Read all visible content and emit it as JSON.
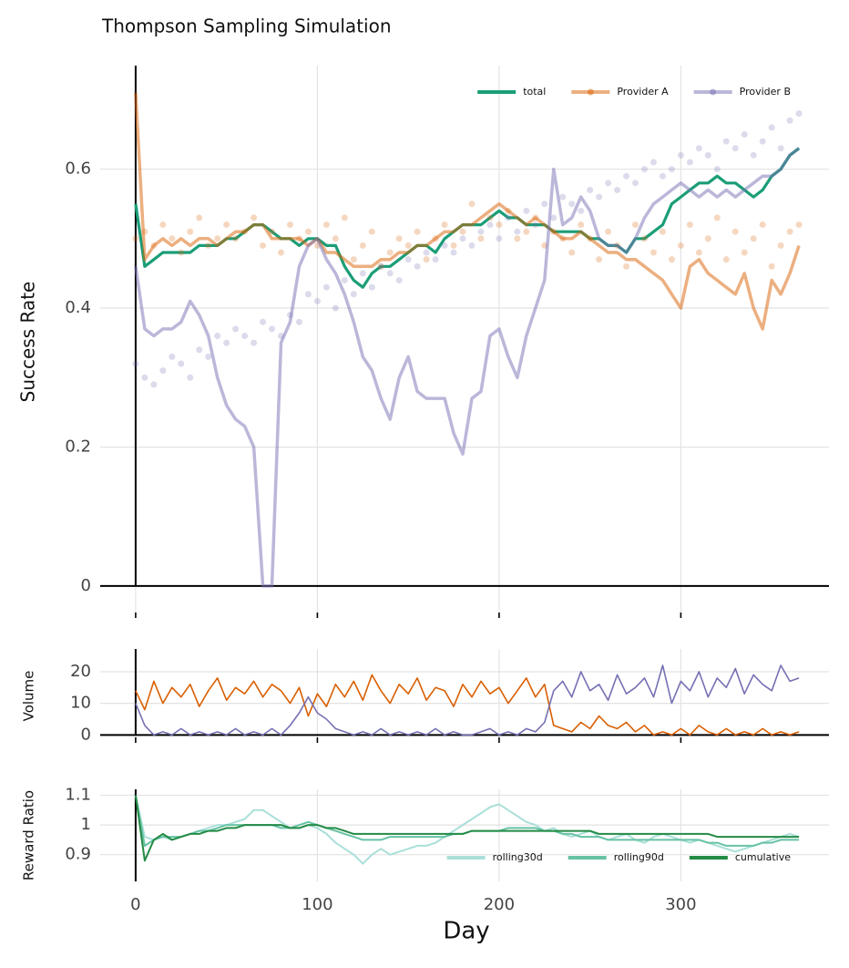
{
  "chart_data": [
    {
      "type": "line",
      "title": "Thompson Sampling Simulation",
      "ylabel": "Success Rate",
      "x": [
        0,
        5,
        10,
        15,
        20,
        25,
        30,
        35,
        40,
        45,
        50,
        55,
        60,
        65,
        70,
        75,
        80,
        85,
        90,
        95,
        100,
        105,
        110,
        115,
        120,
        125,
        130,
        135,
        140,
        145,
        150,
        155,
        160,
        165,
        170,
        175,
        180,
        185,
        190,
        195,
        200,
        205,
        210,
        215,
        220,
        225,
        230,
        235,
        240,
        245,
        250,
        255,
        260,
        265,
        270,
        275,
        280,
        285,
        290,
        295,
        300,
        305,
        310,
        315,
        320,
        325,
        330,
        335,
        340,
        345,
        350,
        355,
        360,
        365
      ],
      "xlim": [
        -19.5,
        381.5
      ],
      "xticks": [
        0,
        100,
        200,
        300
      ],
      "ylim": [
        -0.046,
        0.749
      ],
      "yticks": [
        0,
        0.2,
        0.4,
        0.6
      ],
      "grid": true,
      "legend": "upper right",
      "series": [
        {
          "name": "total",
          "color": "#1b9e77",
          "values": [
            0.55,
            0.46,
            0.47,
            0.48,
            0.48,
            0.48,
            0.48,
            0.49,
            0.49,
            0.49,
            0.5,
            0.5,
            0.51,
            0.52,
            0.52,
            0.51,
            0.5,
            0.5,
            0.49,
            0.5,
            0.5,
            0.49,
            0.49,
            0.46,
            0.44,
            0.43,
            0.45,
            0.46,
            0.46,
            0.47,
            0.48,
            0.49,
            0.49,
            0.48,
            0.5,
            0.51,
            0.52,
            0.52,
            0.52,
            0.53,
            0.54,
            0.53,
            0.53,
            0.52,
            0.52,
            0.52,
            0.51,
            0.51,
            0.51,
            0.51,
            0.5,
            0.5,
            0.49,
            0.49,
            0.48,
            0.5,
            0.5,
            0.51,
            0.52,
            0.55,
            0.56,
            0.57,
            0.58,
            0.58,
            0.59,
            0.58,
            0.58,
            0.57,
            0.56,
            0.57,
            0.59,
            0.6,
            0.62,
            0.63
          ]
        },
        {
          "name": "Provider A",
          "color": "#d95f02",
          "values": [
            0.71,
            0.47,
            0.49,
            0.5,
            0.49,
            0.5,
            0.49,
            0.5,
            0.5,
            0.49,
            0.5,
            0.51,
            0.51,
            0.52,
            0.52,
            0.5,
            0.5,
            0.5,
            0.5,
            0.49,
            0.5,
            0.48,
            0.48,
            0.47,
            0.46,
            0.46,
            0.46,
            0.47,
            0.47,
            0.48,
            0.48,
            0.49,
            0.49,
            0.5,
            0.51,
            0.51,
            0.52,
            0.52,
            0.53,
            0.54,
            0.55,
            0.54,
            0.53,
            0.52,
            0.53,
            0.52,
            0.51,
            0.5,
            0.5,
            0.51,
            0.5,
            0.49,
            0.48,
            0.48,
            0.47,
            0.47,
            0.46,
            0.45,
            0.44,
            0.42,
            0.4,
            0.46,
            0.47,
            0.45,
            0.44,
            0.43,
            0.42,
            0.45,
            0.4,
            0.37,
            0.44,
            0.42,
            0.45,
            0.49
          ],
          "scatter": [
            0.5,
            0.51,
            0.49,
            0.52,
            0.5,
            0.48,
            0.51,
            0.53,
            0.49,
            0.5,
            0.52,
            0.5,
            0.51,
            0.53,
            0.49,
            0.51,
            0.48,
            0.52,
            0.5,
            0.51,
            0.49,
            0.52,
            0.5,
            0.53,
            0.47,
            0.49,
            0.51,
            0.46,
            0.48,
            0.5,
            0.49,
            0.51,
            0.47,
            0.5,
            0.52,
            0.49,
            0.51,
            0.55,
            0.5,
            0.53,
            0.52,
            0.54,
            0.5,
            0.51,
            0.53,
            0.49,
            0.51,
            0.5,
            0.48,
            0.52,
            0.5,
            0.47,
            0.51,
            0.49,
            0.46,
            0.52,
            0.5,
            0.48,
            0.51,
            0.47,
            0.49,
            0.52,
            0.48,
            0.5,
            0.53,
            0.47,
            0.51,
            0.48,
            0.5,
            0.52,
            0.46,
            0.49,
            0.51,
            0.52
          ]
        },
        {
          "name": "Provider B",
          "color": "#7570b3",
          "values": [
            0.46,
            0.37,
            0.36,
            0.37,
            0.37,
            0.38,
            0.41,
            0.39,
            0.36,
            0.3,
            0.26,
            0.24,
            0.23,
            0.2,
            0.0,
            0.0,
            0.35,
            0.38,
            0.46,
            0.49,
            0.5,
            0.47,
            0.45,
            0.42,
            0.38,
            0.33,
            0.31,
            0.27,
            0.24,
            0.3,
            0.33,
            0.28,
            0.27,
            0.27,
            0.27,
            0.22,
            0.19,
            0.27,
            0.28,
            0.36,
            0.37,
            0.33,
            0.3,
            0.36,
            0.4,
            0.44,
            0.6,
            0.52,
            0.53,
            0.56,
            0.54,
            0.5,
            0.49,
            0.49,
            0.48,
            0.5,
            0.53,
            0.55,
            0.56,
            0.57,
            0.58,
            0.57,
            0.56,
            0.57,
            0.56,
            0.57,
            0.56,
            0.57,
            0.58,
            0.59,
            0.59,
            0.6,
            0.62,
            0.63
          ],
          "scatter": [
            0.32,
            0.3,
            0.29,
            0.31,
            0.33,
            0.32,
            0.3,
            0.34,
            0.33,
            0.36,
            0.35,
            0.37,
            0.36,
            0.35,
            0.38,
            0.37,
            0.36,
            0.39,
            0.38,
            0.42,
            0.41,
            0.43,
            0.4,
            0.44,
            0.42,
            0.45,
            0.43,
            0.46,
            0.45,
            0.44,
            0.47,
            0.46,
            0.48,
            0.47,
            0.49,
            0.48,
            0.5,
            0.49,
            0.51,
            0.52,
            0.5,
            0.53,
            0.51,
            0.54,
            0.52,
            0.55,
            0.53,
            0.56,
            0.55,
            0.54,
            0.57,
            0.56,
            0.58,
            0.57,
            0.59,
            0.58,
            0.6,
            0.61,
            0.59,
            0.6,
            0.62,
            0.61,
            0.63,
            0.62,
            0.6,
            0.64,
            0.63,
            0.65,
            0.62,
            0.64,
            0.66,
            0.63,
            0.67,
            0.68
          ]
        }
      ]
    },
    {
      "type": "line",
      "ylabel": "Volume",
      "x": [
        0,
        5,
        10,
        15,
        20,
        25,
        30,
        35,
        40,
        45,
        50,
        55,
        60,
        65,
        70,
        75,
        80,
        85,
        90,
        95,
        100,
        105,
        110,
        115,
        120,
        125,
        130,
        135,
        140,
        145,
        150,
        155,
        160,
        165,
        170,
        175,
        180,
        185,
        190,
        195,
        200,
        205,
        210,
        215,
        220,
        225,
        230,
        235,
        240,
        245,
        250,
        255,
        260,
        265,
        270,
        275,
        280,
        285,
        290,
        295,
        300,
        305,
        310,
        315,
        320,
        325,
        330,
        335,
        340,
        345,
        350,
        355,
        360,
        365
      ],
      "xlim": [
        -19.5,
        381.5
      ],
      "xticks": [
        0,
        100,
        200,
        300
      ],
      "ylim": [
        -2.5,
        27.2
      ],
      "yticks": [
        0,
        10,
        20
      ],
      "grid": true,
      "series": [
        {
          "color": "#d95f02",
          "values": [
            14,
            8,
            17,
            10,
            15,
            12,
            16,
            9,
            14,
            18,
            11,
            15,
            13,
            17,
            12,
            16,
            14,
            10,
            15,
            6,
            13,
            9,
            16,
            12,
            17,
            11,
            19,
            14,
            10,
            16,
            13,
            18,
            11,
            15,
            14,
            9,
            16,
            12,
            17,
            13,
            15,
            10,
            14,
            18,
            12,
            16,
            3,
            2,
            1,
            4,
            2,
            6,
            3,
            2,
            4,
            1,
            3,
            0,
            1,
            0,
            2,
            0,
            3,
            1,
            0,
            2,
            0,
            1,
            0,
            2,
            0,
            1,
            0,
            1
          ]
        },
        {
          "color": "#7570b3",
          "values": [
            10,
            3,
            0,
            1,
            0,
            2,
            0,
            1,
            0,
            1,
            0,
            2,
            0,
            1,
            0,
            2,
            0,
            3,
            7,
            12,
            7,
            5,
            2,
            1,
            0,
            1,
            0,
            2,
            0,
            1,
            0,
            1,
            0,
            2,
            0,
            1,
            0,
            0,
            1,
            2,
            0,
            1,
            0,
            2,
            1,
            4,
            14,
            17,
            12,
            20,
            14,
            16,
            11,
            19,
            13,
            15,
            18,
            12,
            22,
            10,
            17,
            14,
            20,
            12,
            18,
            15,
            21,
            13,
            19,
            16,
            14,
            22,
            17,
            18
          ]
        }
      ]
    },
    {
      "type": "line",
      "ylabel": "Reward Ratio",
      "xlabel": "Day",
      "x": [
        0,
        5,
        10,
        15,
        20,
        25,
        30,
        35,
        40,
        45,
        50,
        55,
        60,
        65,
        70,
        75,
        80,
        85,
        90,
        95,
        100,
        105,
        110,
        115,
        120,
        125,
        130,
        135,
        140,
        145,
        150,
        155,
        160,
        165,
        170,
        175,
        180,
        185,
        190,
        195,
        200,
        205,
        210,
        215,
        220,
        225,
        230,
        235,
        240,
        245,
        250,
        255,
        260,
        265,
        270,
        275,
        280,
        285,
        290,
        295,
        300,
        305,
        310,
        315,
        320,
        325,
        330,
        335,
        340,
        345,
        350,
        355,
        360,
        365
      ],
      "xlim": [
        -19.5,
        381.5
      ],
      "xticks": [
        0,
        100,
        200,
        300
      ],
      "ylim": [
        0.81,
        1.12
      ],
      "yticks": [
        0.9,
        1,
        1.1
      ],
      "grid": true,
      "legend": "lower right",
      "series": [
        {
          "name": "rolling30d",
          "color": "#aadfd9",
          "values": [
            1.1,
            0.96,
            0.95,
            0.96,
            0.95,
            0.96,
            0.97,
            0.98,
            0.99,
            1.0,
            1.0,
            1.01,
            1.02,
            1.05,
            1.05,
            1.03,
            1.01,
            0.99,
            0.99,
            1.0,
            0.99,
            0.97,
            0.94,
            0.92,
            0.9,
            0.87,
            0.9,
            0.92,
            0.9,
            0.91,
            0.92,
            0.93,
            0.93,
            0.94,
            0.96,
            0.98,
            1.0,
            1.02,
            1.04,
            1.06,
            1.07,
            1.05,
            1.03,
            1.01,
            1.0,
            0.98,
            0.99,
            0.97,
            0.96,
            0.97,
            0.98,
            0.96,
            0.95,
            0.96,
            0.97,
            0.95,
            0.94,
            0.96,
            0.97,
            0.96,
            0.95,
            0.94,
            0.95,
            0.94,
            0.93,
            0.92,
            0.91,
            0.92,
            0.93,
            0.94,
            0.95,
            0.96,
            0.97,
            0.96
          ]
        },
        {
          "name": "rolling90d",
          "color": "#66c2a4",
          "values": [
            1.1,
            0.93,
            0.95,
            0.96,
            0.96,
            0.96,
            0.97,
            0.98,
            0.98,
            0.99,
            1.0,
            1.0,
            1.0,
            1.0,
            1.0,
            1.0,
            0.99,
            0.99,
            1.0,
            1.01,
            1.0,
            0.99,
            0.98,
            0.97,
            0.96,
            0.95,
            0.95,
            0.95,
            0.96,
            0.96,
            0.96,
            0.96,
            0.96,
            0.96,
            0.96,
            0.97,
            0.97,
            0.98,
            0.98,
            0.98,
            0.98,
            0.99,
            0.99,
            0.99,
            0.99,
            0.98,
            0.98,
            0.97,
            0.97,
            0.96,
            0.96,
            0.96,
            0.95,
            0.95,
            0.95,
            0.95,
            0.95,
            0.95,
            0.95,
            0.95,
            0.95,
            0.95,
            0.95,
            0.94,
            0.94,
            0.93,
            0.93,
            0.93,
            0.93,
            0.94,
            0.94,
            0.95,
            0.95,
            0.95
          ]
        },
        {
          "name": "cumulative",
          "color": "#238b45",
          "values": [
            1.1,
            0.88,
            0.95,
            0.97,
            0.95,
            0.96,
            0.97,
            0.97,
            0.98,
            0.98,
            0.99,
            0.99,
            1.0,
            1.0,
            1.0,
            1.0,
            1.0,
            0.99,
            0.99,
            1.0,
            1.0,
            0.99,
            0.99,
            0.98,
            0.97,
            0.97,
            0.97,
            0.97,
            0.97,
            0.97,
            0.97,
            0.97,
            0.97,
            0.97,
            0.97,
            0.97,
            0.97,
            0.98,
            0.98,
            0.98,
            0.98,
            0.98,
            0.98,
            0.98,
            0.98,
            0.98,
            0.98,
            0.98,
            0.98,
            0.98,
            0.98,
            0.97,
            0.97,
            0.97,
            0.97,
            0.97,
            0.97,
            0.97,
            0.97,
            0.97,
            0.97,
            0.97,
            0.97,
            0.97,
            0.96,
            0.96,
            0.96,
            0.96,
            0.96,
            0.96,
            0.96,
            0.96,
            0.96,
            0.96
          ]
        }
      ]
    }
  ]
}
